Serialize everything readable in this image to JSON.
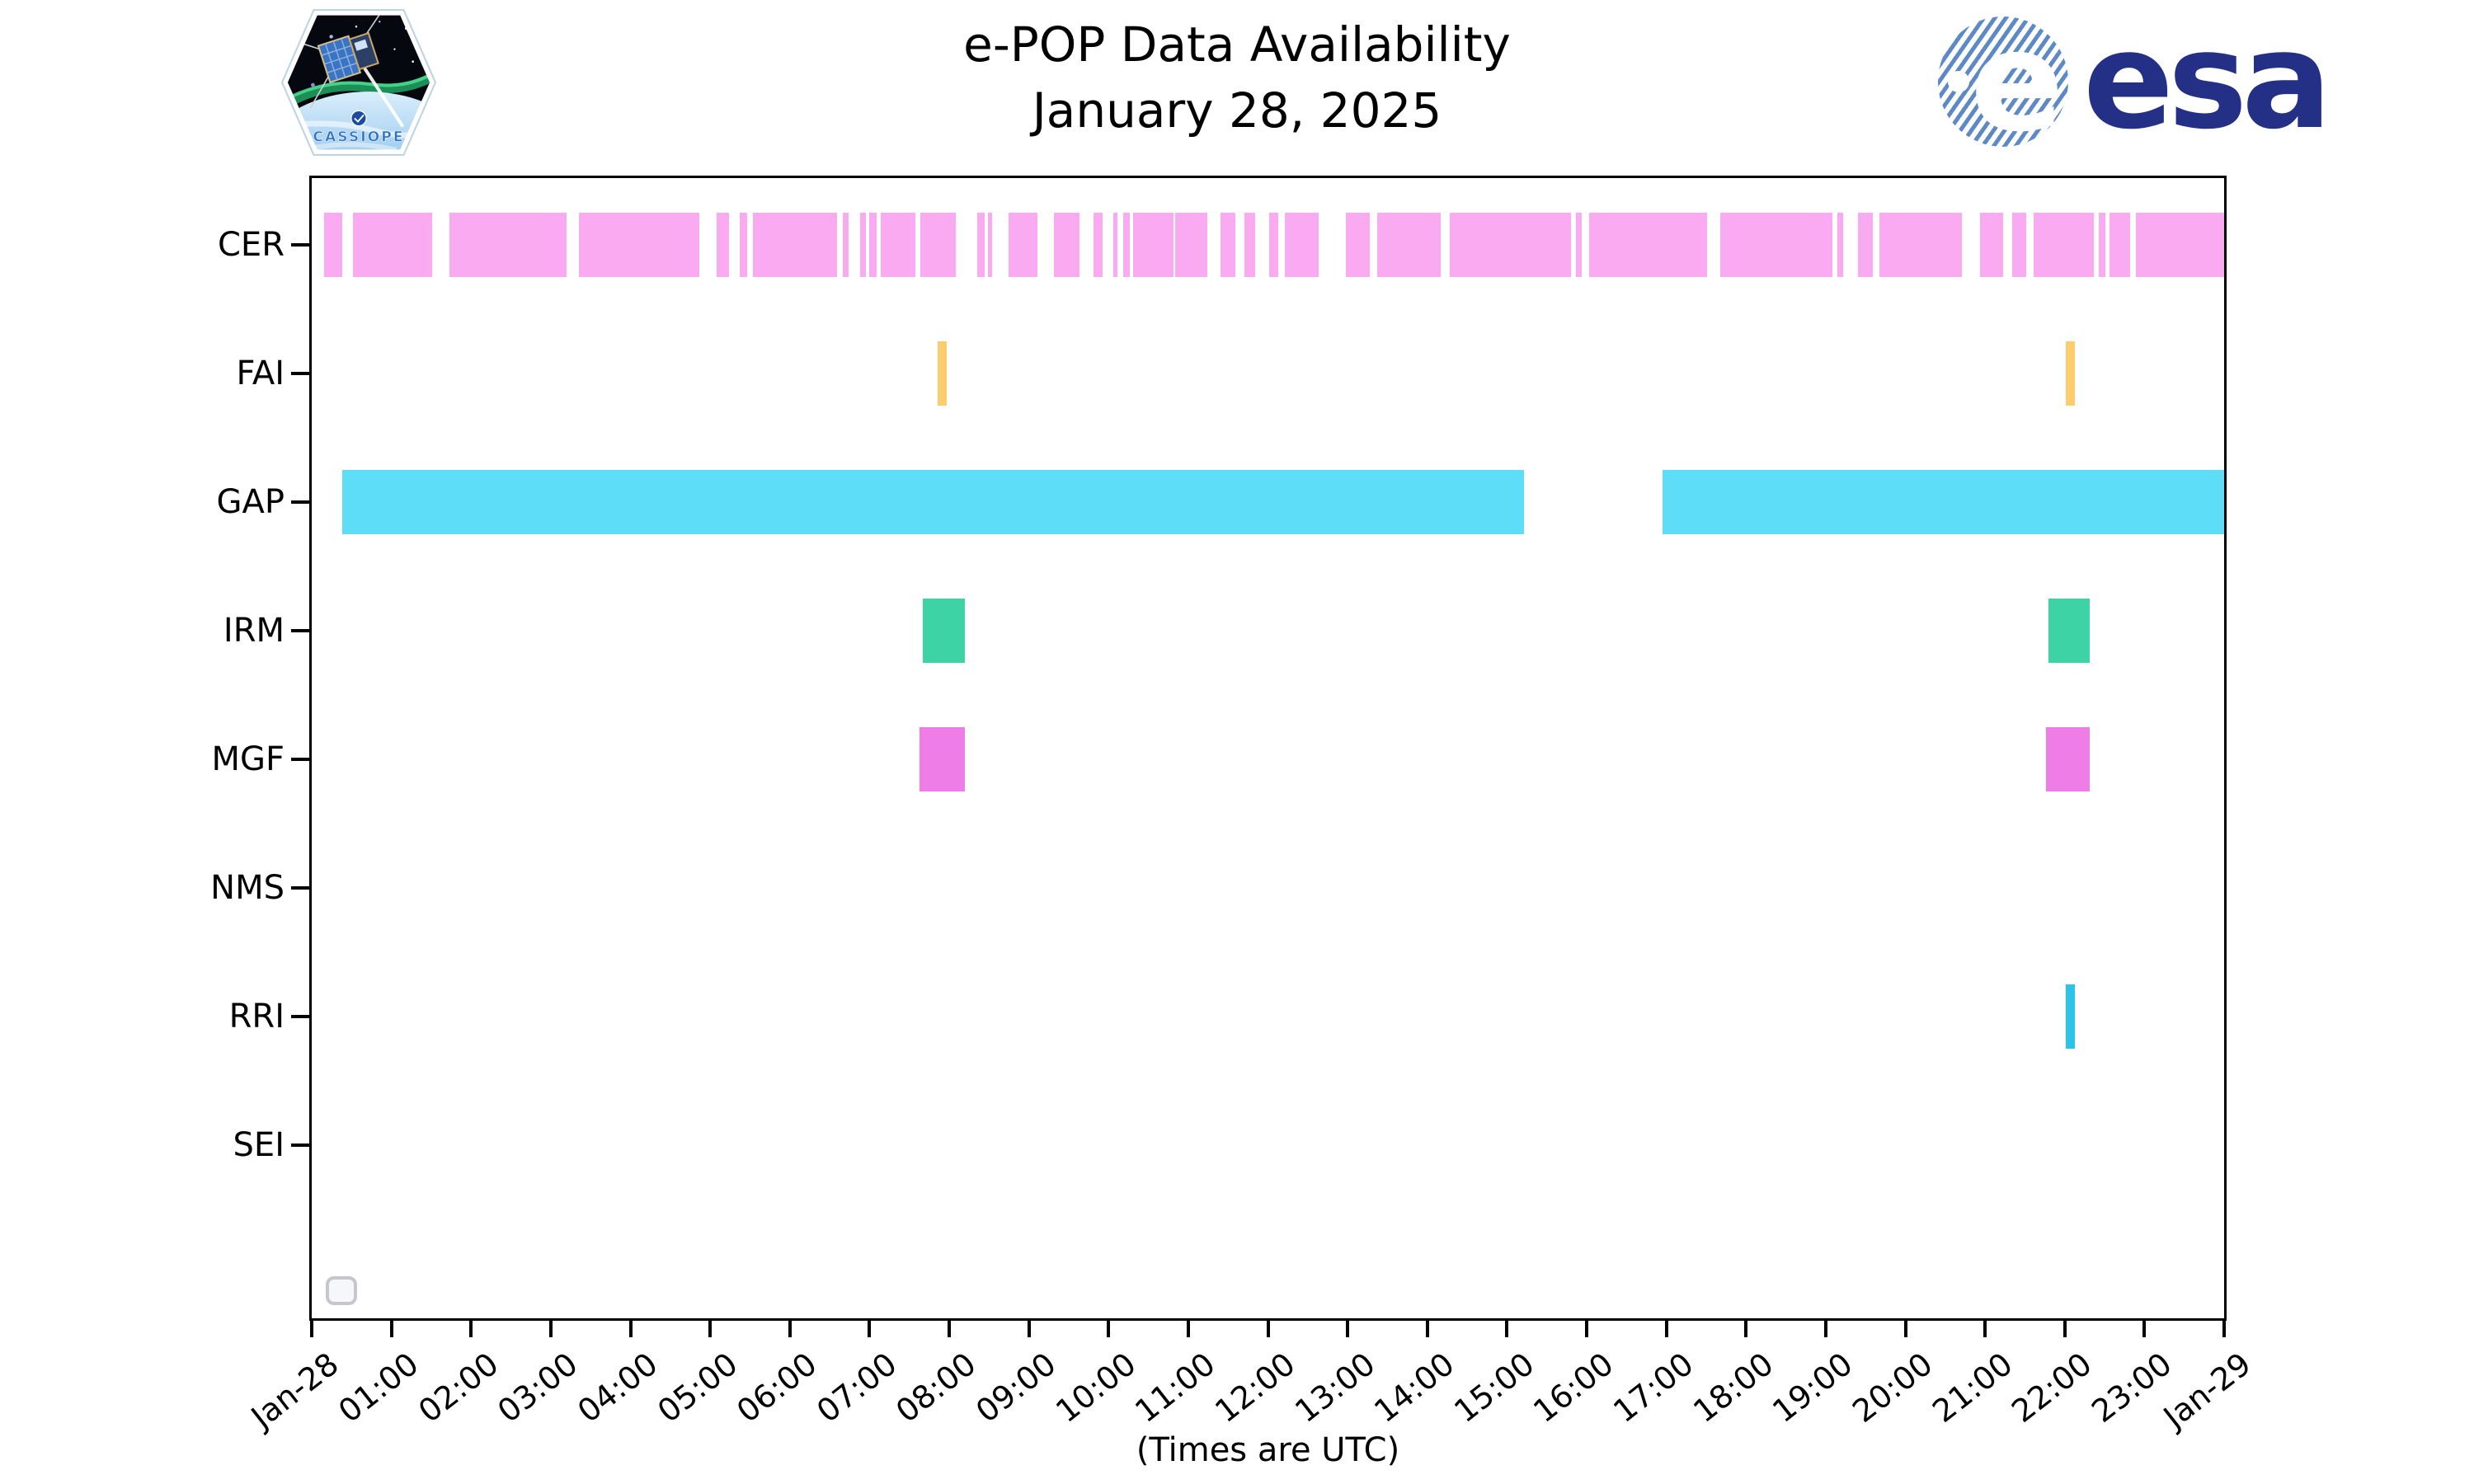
{
  "header": {
    "cassiope_patch_label": "CASSIOPE",
    "esa_globe_letter": "e",
    "esa_logo_text": "esa"
  },
  "chart_data": {
    "type": "bar",
    "subtype": "horizontal broken-bar availability timeline (Gantt-style)",
    "title": "e-POP Data Availability",
    "subtitle": "January 28, 2025",
    "xlabel": "(Times are UTC)",
    "x_axis": {
      "unit": "hours UTC on 2025-01-28",
      "range_hours": [
        0,
        24
      ],
      "tick_interval_hours": 1,
      "tick_labels": [
        "Jan-28",
        "01:00",
        "02:00",
        "03:00",
        "04:00",
        "05:00",
        "06:00",
        "07:00",
        "08:00",
        "09:00",
        "10:00",
        "11:00",
        "12:00",
        "13:00",
        "14:00",
        "15:00",
        "16:00",
        "17:00",
        "18:00",
        "19:00",
        "20:00",
        "21:00",
        "22:00",
        "23:00",
        "Jan-29"
      ],
      "tick_label_rotation_deg": 38,
      "grid": false
    },
    "y_axis": {
      "categories": [
        "CER",
        "FAI",
        "GAP",
        "IRM",
        "MGF",
        "NMS",
        "RRI",
        "SEI"
      ]
    },
    "legend": {
      "present": true,
      "note": "small empty rounded legend box at bottom-left inside axes"
    },
    "series": [
      {
        "name": "CER",
        "color": "#faaaf0",
        "segments_hours_utc": [
          [
            0.16,
            0.38
          ],
          [
            0.52,
            1.51
          ],
          [
            1.73,
            3.2
          ],
          [
            3.35,
            4.86
          ],
          [
            5.08,
            5.24
          ],
          [
            5.37,
            5.46
          ],
          [
            5.54,
            6.59
          ],
          [
            6.66,
            6.74
          ],
          [
            6.88,
            6.95
          ],
          [
            7.0,
            7.09
          ],
          [
            7.14,
            7.58
          ],
          [
            7.64,
            8.08
          ],
          [
            8.35,
            8.44
          ],
          [
            8.49,
            8.54
          ],
          [
            8.74,
            9.11
          ],
          [
            9.31,
            9.64
          ],
          [
            9.81,
            9.93
          ],
          [
            10.06,
            10.11
          ],
          [
            10.18,
            10.27
          ],
          [
            10.31,
            10.81
          ],
          [
            10.84,
            11.24
          ],
          [
            11.4,
            11.59
          ],
          [
            11.71,
            11.84
          ],
          [
            12.02,
            12.13
          ],
          [
            12.21,
            12.64
          ],
          [
            12.98,
            13.28
          ],
          [
            13.37,
            14.17
          ],
          [
            14.28,
            15.8
          ],
          [
            15.87,
            15.94
          ],
          [
            16.03,
            17.51
          ],
          [
            17.68,
            19.08
          ],
          [
            19.15,
            19.22
          ],
          [
            19.4,
            19.59
          ],
          [
            19.67,
            20.71
          ],
          [
            20.94,
            21.23
          ],
          [
            21.34,
            21.52
          ],
          [
            21.61,
            22.36
          ],
          [
            22.43,
            22.51
          ],
          [
            22.56,
            22.82
          ],
          [
            22.89,
            24.0
          ]
        ]
      },
      {
        "name": "FAI",
        "color": "#fbcd6d",
        "segments_hours_utc": [
          [
            7.85,
            7.97
          ],
          [
            22.01,
            22.13
          ]
        ]
      },
      {
        "name": "GAP",
        "color": "#5eddf8",
        "segments_hours_utc": [
          [
            0.38,
            15.21
          ],
          [
            16.95,
            24.0
          ]
        ]
      },
      {
        "name": "IRM",
        "color": "#3dd3a4",
        "segments_hours_utc": [
          [
            7.67,
            8.2
          ],
          [
            21.8,
            22.31
          ]
        ]
      },
      {
        "name": "MGF",
        "color": "#ef7de7",
        "segments_hours_utc": [
          [
            7.63,
            8.2
          ],
          [
            21.76,
            22.31
          ]
        ]
      },
      {
        "name": "NMS",
        "color": null,
        "segments_hours_utc": []
      },
      {
        "name": "RRI",
        "color": "#2cc3e8",
        "segments_hours_utc": [
          [
            22.01,
            22.13
          ]
        ]
      },
      {
        "name": "SEI",
        "color": null,
        "segments_hours_utc": []
      }
    ]
  }
}
